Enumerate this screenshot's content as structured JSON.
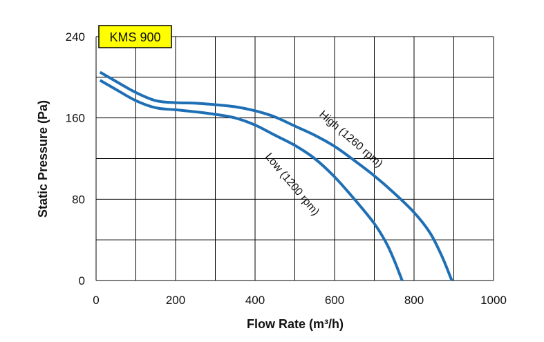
{
  "chart_data": {
    "type": "line",
    "title": "KMS 900",
    "xlabel": "Flow Rate (m³/h)",
    "ylabel": "Static Pressure (Pa)",
    "xlim": [
      0,
      1000
    ],
    "ylim": [
      0,
      240
    ],
    "x_ticks": [
      0,
      200,
      400,
      600,
      800,
      1000
    ],
    "x_tick_labels": [
      "0",
      "200",
      "400",
      "600",
      "800",
      "1000"
    ],
    "y_ticks": [
      0,
      80,
      160,
      240
    ],
    "y_tick_labels": [
      "0",
      "80",
      "160",
      "240"
    ],
    "x_grid": [
      0,
      100,
      200,
      300,
      400,
      500,
      600,
      700,
      800,
      900,
      1000
    ],
    "y_grid": [
      0,
      40,
      80,
      120,
      160,
      200,
      240
    ],
    "grid": true,
    "series": [
      {
        "name": "High (1260 rpm)",
        "color": "#1f6fb5",
        "x": [
          10,
          50,
          100,
          150,
          200,
          250,
          300,
          350,
          400,
          450,
          500,
          550,
          600,
          650,
          700,
          750,
          800,
          840,
          870,
          895
        ],
        "y": [
          205,
          196,
          185,
          177,
          175,
          174.5,
          173,
          171,
          167,
          161,
          152,
          143,
          132,
          118,
          103,
          86,
          67,
          47,
          24,
          0
        ]
      },
      {
        "name": "Low (1200 rpm)",
        "color": "#1f6fb5",
        "x": [
          10,
          50,
          100,
          150,
          200,
          250,
          300,
          350,
          400,
          450,
          500,
          550,
          600,
          650,
          700,
          730,
          750,
          770
        ],
        "y": [
          197,
          188,
          177,
          170,
          168,
          166,
          163.5,
          160,
          153,
          143,
          133,
          120,
          102,
          80,
          56,
          37,
          20,
          0
        ]
      }
    ]
  }
}
